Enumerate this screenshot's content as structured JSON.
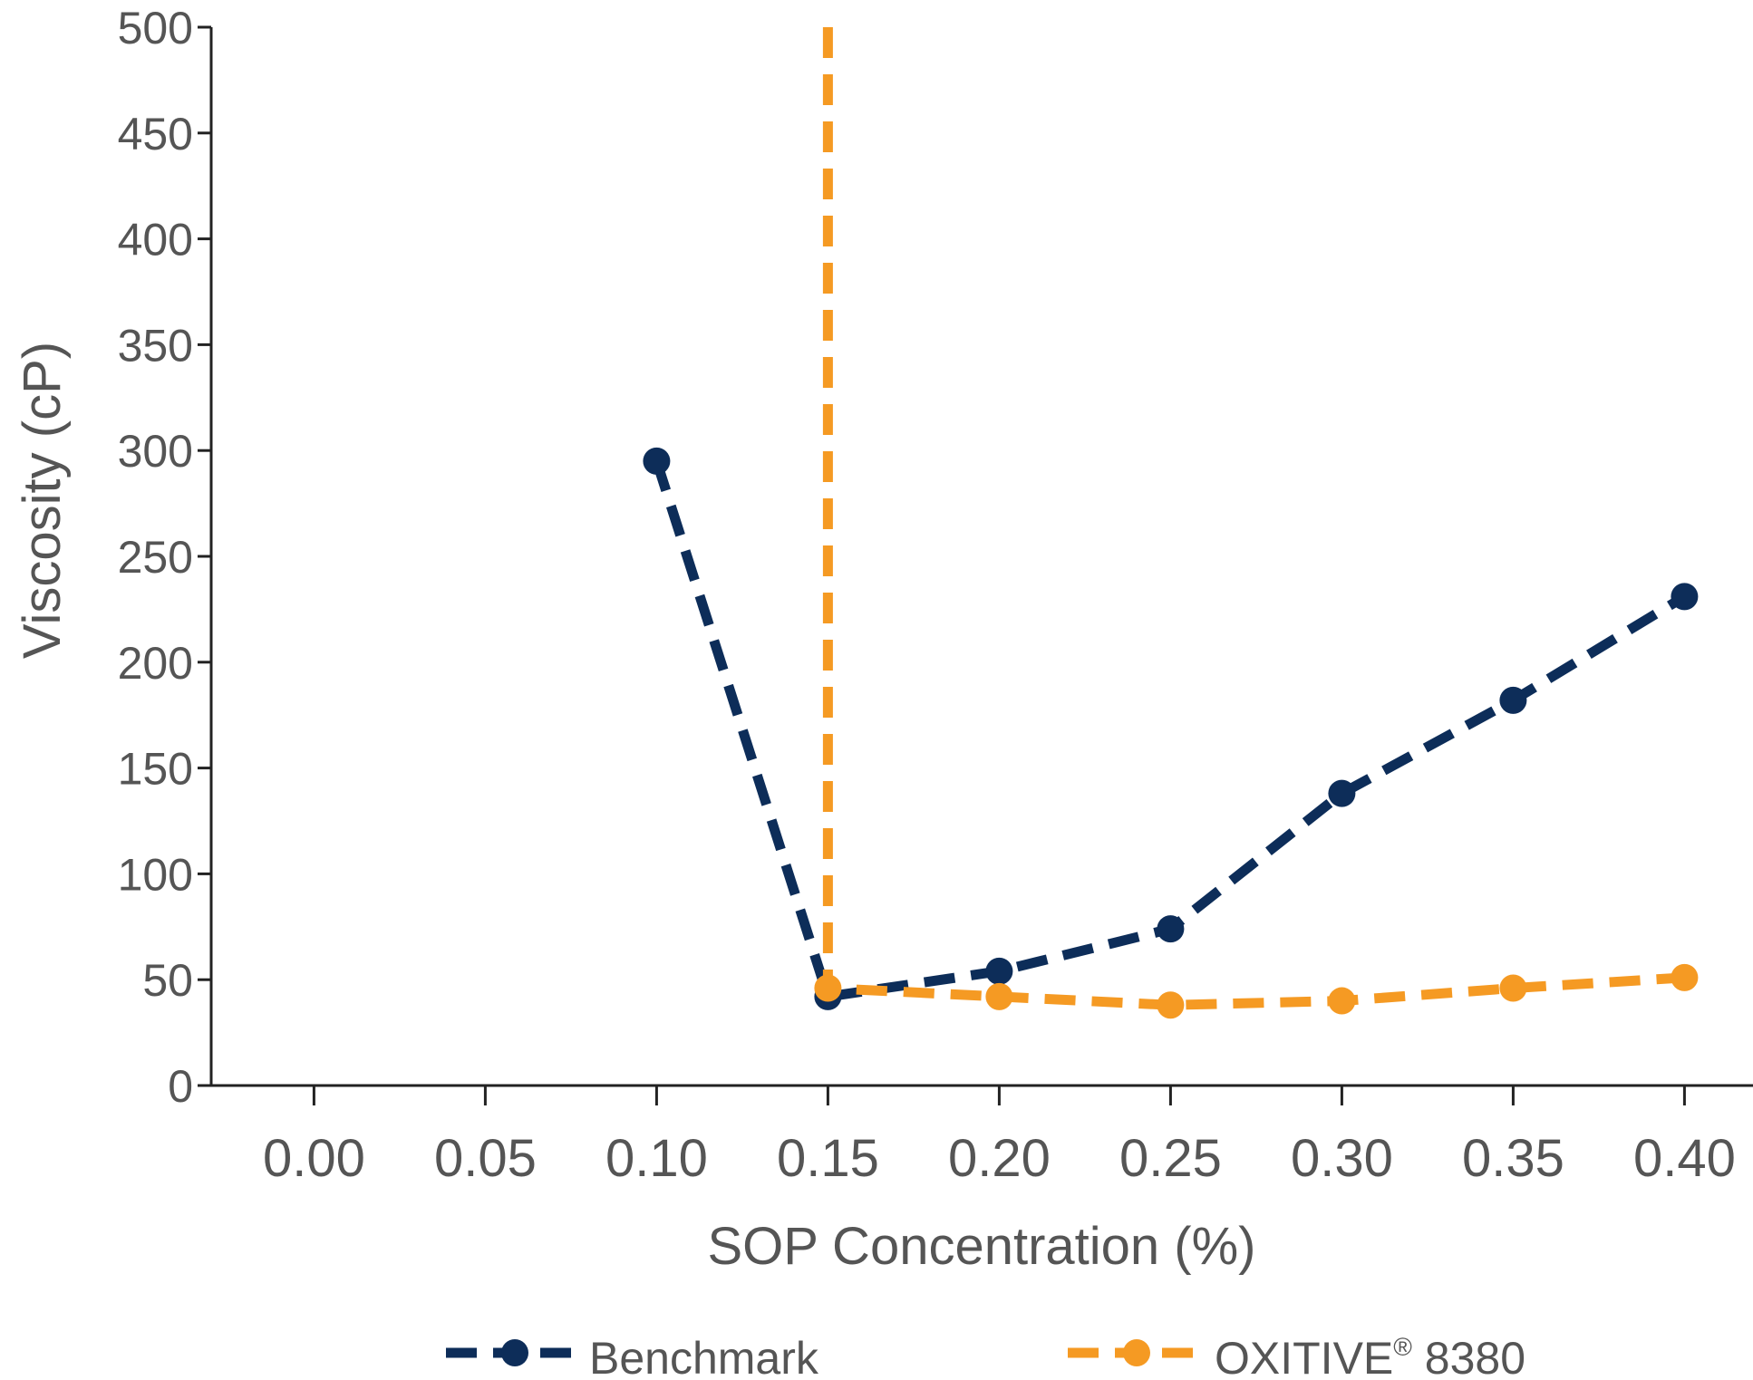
{
  "chart_data": {
    "type": "line",
    "xlabel": "SOP Concentration (%)",
    "ylabel": "Viscosity (cP)",
    "xlim": [
      -0.03,
      0.42
    ],
    "ylim": [
      0,
      500
    ],
    "x_ticks": [
      0.0,
      0.05,
      0.1,
      0.15,
      0.2,
      0.25,
      0.3,
      0.35,
      0.4
    ],
    "x_tick_labels": [
      "0.00",
      "0.05",
      "0.10",
      "0.15",
      "0.20",
      "0.25",
      "0.30",
      "0.35",
      "0.40"
    ],
    "y_ticks": [
      0,
      50,
      100,
      150,
      200,
      250,
      300,
      350,
      400,
      450,
      500
    ],
    "y_tick_labels": [
      "0",
      "50",
      "100",
      "150",
      "200",
      "250",
      "300",
      "350",
      "400",
      "450",
      "500"
    ],
    "grid": false,
    "legend": "bottom",
    "series": [
      {
        "name": "Benchmark",
        "color": "#0d2d59",
        "line_style": "dashed",
        "marker": "circle",
        "points": [
          {
            "x": 0.1,
            "y": 295
          },
          {
            "x": 0.15,
            "y": 42
          },
          {
            "x": 0.2,
            "y": 54
          },
          {
            "x": 0.25,
            "y": 74
          },
          {
            "x": 0.3,
            "y": 138
          },
          {
            "x": 0.35,
            "y": 182
          },
          {
            "x": 0.4,
            "y": 231
          }
        ]
      },
      {
        "name": "OXITIVE",
        "name_superscript": "®",
        "name_suffix": " 8380",
        "color": "#f59a23",
        "line_style": "dashed",
        "marker": "circle",
        "points": [
          {
            "x": 0.15,
            "y": 500,
            "marker": false
          },
          {
            "x": 0.15,
            "y": 46
          },
          {
            "x": 0.2,
            "y": 42
          },
          {
            "x": 0.25,
            "y": 38
          },
          {
            "x": 0.3,
            "y": 40
          },
          {
            "x": 0.35,
            "y": 46
          },
          {
            "x": 0.4,
            "y": 51
          }
        ]
      }
    ]
  }
}
